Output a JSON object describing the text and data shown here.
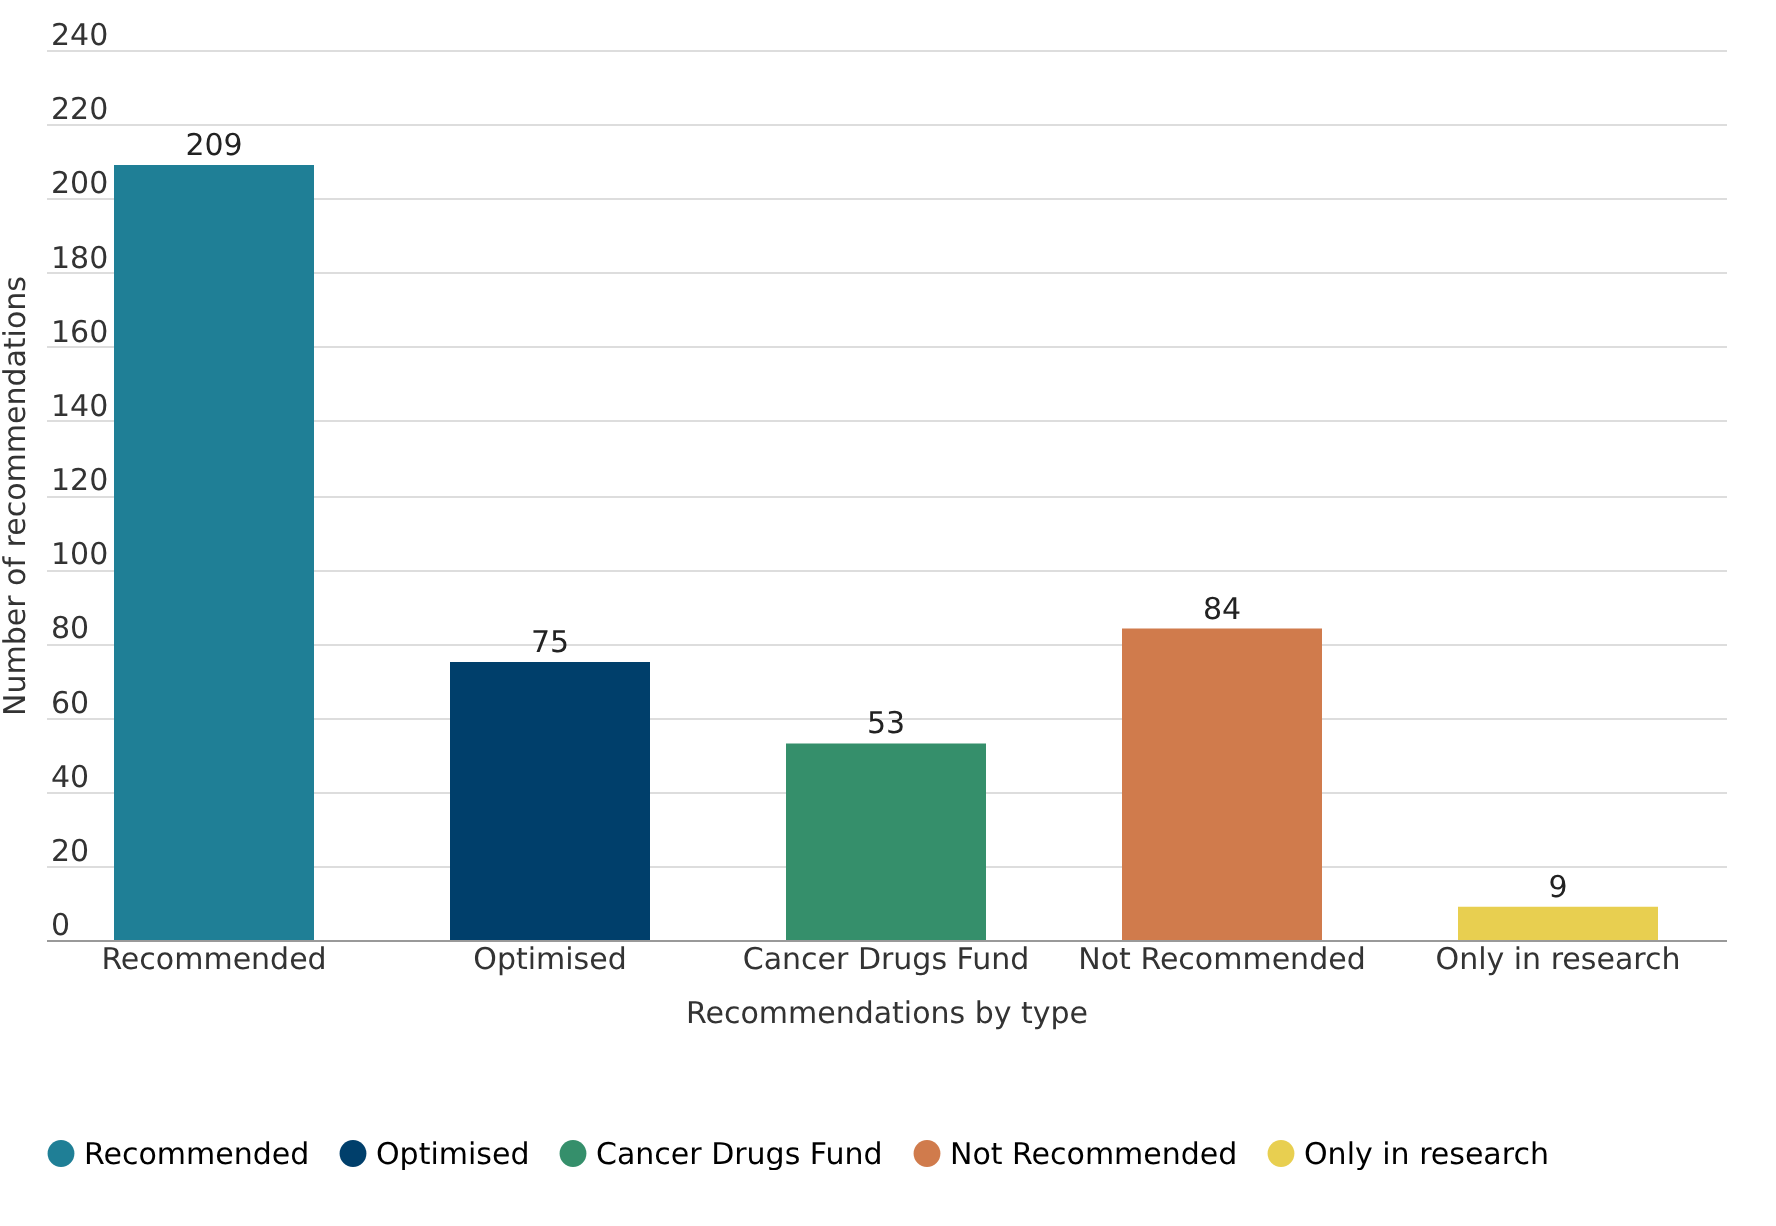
{
  "chart_data": {
    "type": "bar",
    "xlabel": "Recommendations by type",
    "ylabel": "Number of recommendations",
    "categories": [
      "Recommended",
      "Optimised",
      "Cancer Drugs Fund",
      "Not Recommended",
      "Only in research"
    ],
    "series": [
      {
        "name": "Recommended",
        "color": "#1f7f96",
        "values": [
          209,
          null,
          null,
          null,
          null
        ]
      },
      {
        "name": "Optimised",
        "color": "#003f6b",
        "values": [
          null,
          75,
          null,
          null,
          null
        ]
      },
      {
        "name": "Cancer Drugs Fund",
        "color": "#358f6b",
        "values": [
          null,
          null,
          53,
          null,
          null
        ]
      },
      {
        "name": "Not Recommended",
        "color": "#d07b4c",
        "values": [
          null,
          null,
          null,
          84,
          null
        ]
      },
      {
        "name": "Only in research",
        "color": "#e8cf50",
        "values": [
          null,
          null,
          null,
          null,
          9
        ]
      }
    ],
    "ylim": [
      0,
      240
    ],
    "yticks": [
      0,
      20,
      40,
      60,
      80,
      100,
      120,
      140,
      160,
      180,
      200,
      220,
      240
    ],
    "grid": "y",
    "legend": "bottom",
    "data_labels": true
  }
}
